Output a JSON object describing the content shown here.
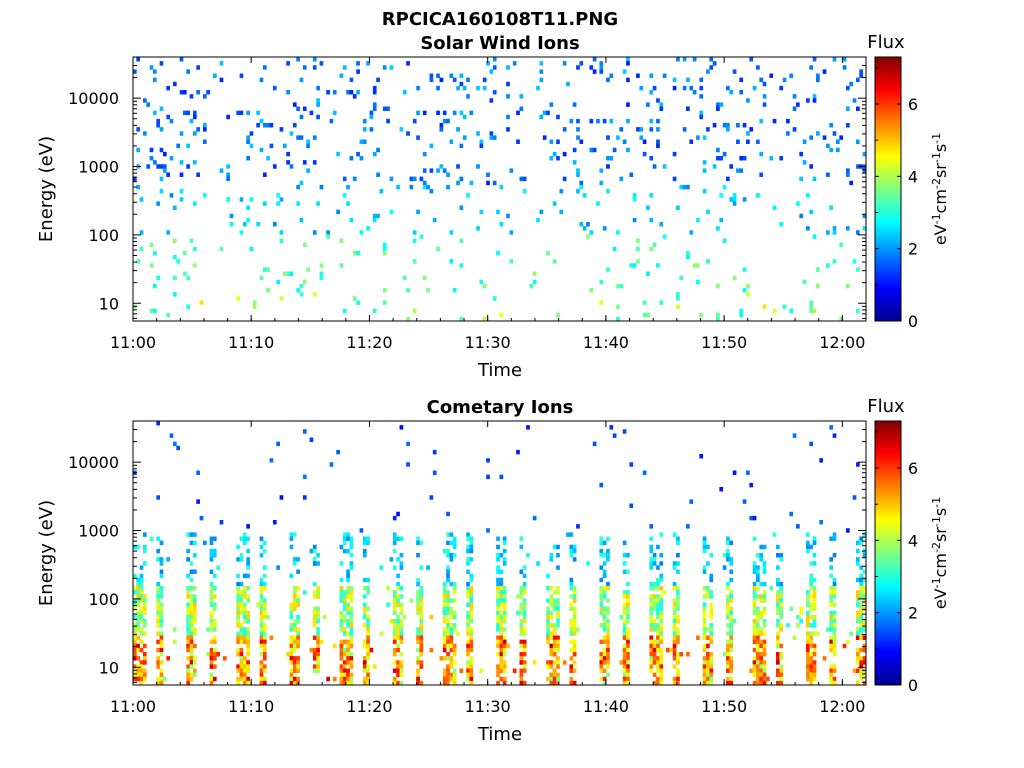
{
  "figure_title": "RPCICA160108T11.PNG",
  "colors": {
    "colormap": [
      "#00008f",
      "#0000ff",
      "#0080ff",
      "#00ffff",
      "#80ff80",
      "#ffff00",
      "#ff8000",
      "#ff0000",
      "#800000"
    ]
  },
  "chart_data": [
    {
      "type": "heatmap",
      "title": "Solar Wind Ions",
      "xlabel": "Time",
      "ylabel": "Energy (eV)",
      "x_ticks": [
        "11:00",
        "11:10",
        "11:20",
        "11:30",
        "11:40",
        "11:50",
        "12:00"
      ],
      "xlim": [
        "11:00",
        "12:02"
      ],
      "y_scale": "log",
      "y_ticks": [
        "10",
        "100",
        "1000",
        "10000"
      ],
      "ylim": [
        5.5,
        40000
      ],
      "colorbar": {
        "title": "Flux",
        "label": "eV-1cm-2sr-1s-1",
        "ticks": [
          "0",
          "2",
          "4",
          "6"
        ],
        "range": [
          0,
          7.3
        ]
      },
      "pattern": "sparse",
      "seed": 7
    },
    {
      "type": "heatmap",
      "title": "Cometary Ions",
      "xlabel": "Time",
      "ylabel": "Energy (eV)",
      "x_ticks": [
        "11:00",
        "11:10",
        "11:20",
        "11:30",
        "11:40",
        "11:50",
        "12:00"
      ],
      "xlim": [
        "11:00",
        "12:02"
      ],
      "y_scale": "log",
      "y_ticks": [
        "10",
        "100",
        "1000",
        "10000"
      ],
      "ylim": [
        5.5,
        40000
      ],
      "colorbar": {
        "title": "Flux",
        "label": "eV-1cm-2sr-1s-1",
        "ticks": [
          "0",
          "2",
          "4",
          "6"
        ],
        "range": [
          0,
          7.3
        ]
      },
      "pattern": "periodic",
      "seed": 13
    }
  ]
}
